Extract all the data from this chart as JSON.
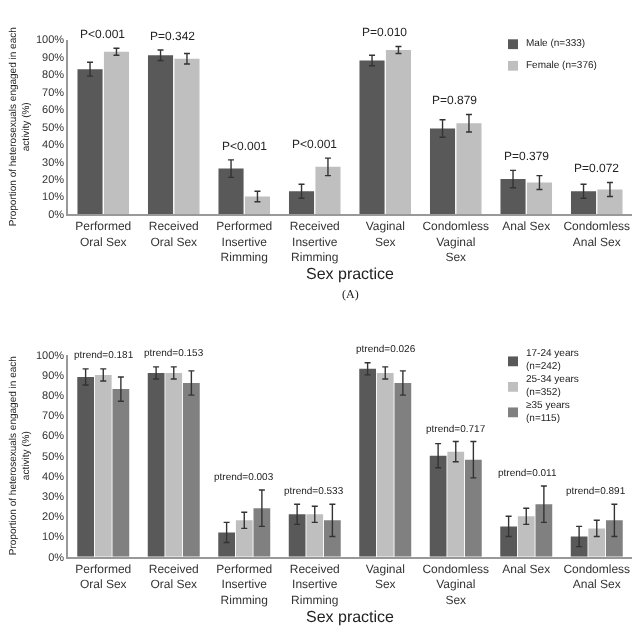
{
  "chart_data": [
    {
      "type": "bar",
      "categories": [
        "Performed Oral Sex",
        "Received Oral Sex",
        "Performed Insertive Rimming",
        "Received Insertive Rimming",
        "Vaginal Sex",
        "Condomless Vaginal Sex",
        "Anal Sex",
        "Condomless Anal Sex"
      ],
      "series": [
        {
          "name": "Male (n=333)",
          "color": "#595959",
          "values": [
            83,
            91,
            26,
            13,
            88,
            49,
            20,
            13
          ],
          "errors": [
            4,
            3,
            5,
            4,
            3,
            5,
            5,
            4
          ]
        },
        {
          "name": "Female (n=376)",
          "color": "#bfbfbf",
          "values": [
            93,
            89,
            10,
            27,
            94,
            52,
            18,
            14
          ],
          "errors": [
            2,
            3,
            3,
            5,
            2,
            5,
            4,
            4
          ]
        }
      ],
      "ylim": [
        0,
        100
      ],
      "yticks": [
        {
          "value": 0,
          "label": "0%"
        },
        {
          "value": 10,
          "label": "10%"
        },
        {
          "value": 20,
          "label": "20%"
        },
        {
          "value": 30,
          "label": "30%"
        },
        {
          "value": 40,
          "label": "40%"
        },
        {
          "value": 50,
          "label": "50%"
        },
        {
          "value": 60,
          "label": "60%"
        },
        {
          "value": 70,
          "label": "70%"
        },
        {
          "value": 80,
          "label": "80%"
        },
        {
          "value": 90,
          "label": "90%"
        },
        {
          "value": 100,
          "label": "100%"
        }
      ],
      "xlabel": "Sex practice",
      "ylabel": "Proportion of heterosexuals engaged in each activity (%)",
      "legend": "top right",
      "grid": false,
      "annotations": [
        "P<0.001",
        "P=0.342",
        "P<0.001",
        "P<0.001",
        "P=0.010",
        "P=0.879",
        "P=0.379",
        "P=0.072",
        "(A)"
      ]
    },
    {
      "type": "bar",
      "categories": [
        "Performed Oral Sex",
        "Received Oral Sex",
        "Performed Insertive Rimming",
        "Received Insertive Rimming",
        "Vaginal Sex",
        "Condomless Vaginal Sex",
        "Anal Sex",
        "Condomless Anal Sex"
      ],
      "series": [
        {
          "name": "17-24 years (n=242)",
          "color": "#595959",
          "values": [
            89,
            91,
            12,
            21,
            93,
            50,
            15,
            10
          ],
          "errors": [
            4,
            3,
            5,
            5,
            3,
            6,
            5,
            5
          ]
        },
        {
          "name": "25-34 years (n=352)",
          "color": "#bfbfbf",
          "values": [
            90,
            91,
            18,
            21,
            91,
            52,
            20,
            14
          ],
          "errors": [
            3,
            3,
            4,
            4,
            3,
            5,
            4,
            4
          ]
        },
        {
          "name": "≥35 years (n=115)",
          "color": "#808080",
          "values": [
            83,
            86,
            24,
            18,
            86,
            48,
            26,
            18
          ],
          "errors": [
            6,
            6,
            9,
            8,
            6,
            9,
            9,
            8
          ]
        }
      ],
      "ylim": [
        0,
        100
      ],
      "yticks": [
        {
          "value": 0,
          "label": "0%"
        },
        {
          "value": 10,
          "label": "10%"
        },
        {
          "value": 20,
          "label": "20%"
        },
        {
          "value": 30,
          "label": "30%"
        },
        {
          "value": 40,
          "label": "40%"
        },
        {
          "value": 50,
          "label": "50%"
        },
        {
          "value": 60,
          "label": "60%"
        },
        {
          "value": 70,
          "label": "70%"
        },
        {
          "value": 80,
          "label": "80%"
        },
        {
          "value": 90,
          "label": "90%"
        },
        {
          "value": 100,
          "label": "100%"
        }
      ],
      "xlabel": "Sex practice",
      "ylabel": "Proportion of heterosexuals engaged in each activity (%)",
      "legend": "top right",
      "grid": false,
      "annotations": [
        "ptrend=0.181",
        "ptrend=0.153",
        "ptrend=0.003",
        "ptrend=0.533",
        "ptrend=0.026",
        "ptrend=0.717",
        "ptrend=0.011",
        "ptrend=0.891"
      ]
    }
  ]
}
